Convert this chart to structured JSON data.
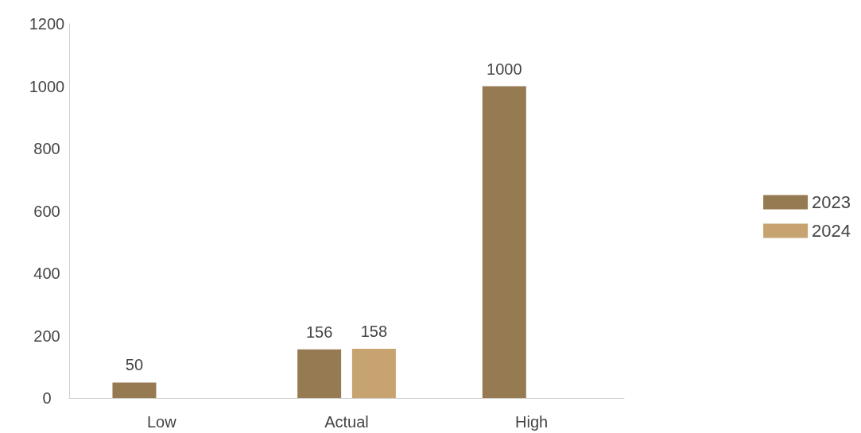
{
  "chart_data": {
    "type": "bar",
    "categories": [
      "Low",
      "Actual",
      "High"
    ],
    "series": [
      {
        "name": "2023",
        "color": "#967a52",
        "values": [
          50,
          156,
          1000
        ]
      },
      {
        "name": "2024",
        "color": "#c6a36f",
        "values": [
          null,
          158,
          null
        ]
      }
    ],
    "ylim": [
      0,
      1200
    ],
    "yticks": [
      0,
      200,
      400,
      600,
      800,
      1000,
      1200
    ],
    "grid": false,
    "legend": "right",
    "data_labels": true
  }
}
